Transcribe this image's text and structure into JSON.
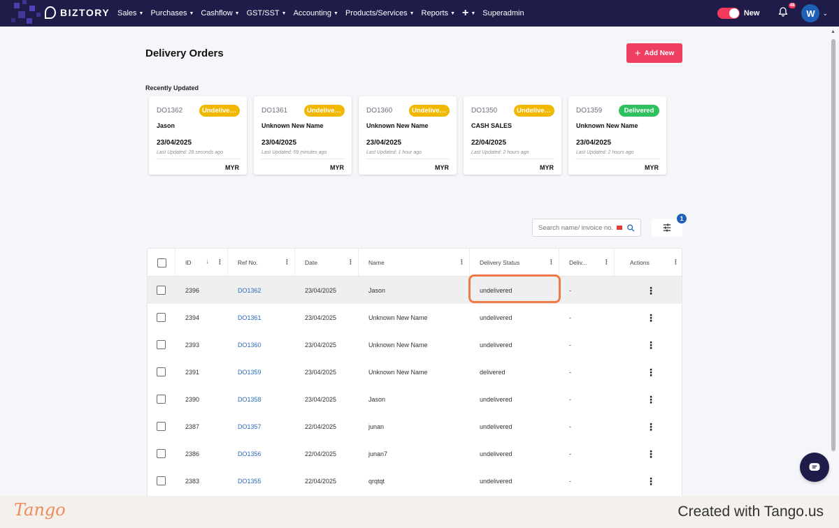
{
  "brand": {
    "name": "BIZTORY"
  },
  "nav": {
    "items": [
      "Sales",
      "Purchases",
      "Cashflow",
      "GST/SST",
      "Accounting",
      "Products/Services",
      "Reports"
    ],
    "plus": "+",
    "superadmin": "Superadmin"
  },
  "header_right": {
    "toggle_label": "New",
    "notification_count": "48",
    "avatar_initial": "W"
  },
  "page": {
    "title": "Delivery Orders",
    "add_button": "Add New",
    "recent_label": "Recently Updated"
  },
  "recent_cards": [
    {
      "ref": "DO1362",
      "status": "Undelivered",
      "status_type": "undel",
      "name": "Jason",
      "date": "23/04/2025",
      "updated": "Last Updated: 28 seconds ago",
      "currency": "MYR"
    },
    {
      "ref": "DO1361",
      "status": "Undelivered",
      "status_type": "undel",
      "name": "Unknown New Name",
      "date": "23/04/2025",
      "updated": "Last Updated: 59 minutes ago",
      "currency": "MYR"
    },
    {
      "ref": "DO1360",
      "status": "Undelivered",
      "status_type": "undel",
      "name": "Unknown New Name",
      "date": "23/04/2025",
      "updated": "Last Updated: 1 hour ago",
      "currency": "MYR"
    },
    {
      "ref": "DO1350",
      "status": "Undelivered",
      "status_type": "undel",
      "name": "CASH SALES",
      "date": "22/04/2025",
      "updated": "Last Updated: 2 hours ago",
      "currency": "MYR"
    },
    {
      "ref": "DO1359",
      "status": "Delivered",
      "status_type": "del",
      "name": "Unknown New Name",
      "date": "23/04/2025",
      "updated": "Last Updated: 2 hours ago",
      "currency": "MYR"
    }
  ],
  "search": {
    "placeholder": "Search name/ invoice no."
  },
  "filter": {
    "badge": "1"
  },
  "table": {
    "columns": [
      "ID",
      "Ref No.",
      "Date",
      "Name",
      "Delivery Status",
      "Deliv...",
      "Actions"
    ],
    "rows": [
      {
        "id": "2396",
        "ref": "DO1362",
        "date": "23/04/2025",
        "name": "Jason",
        "status": "undelivered",
        "deliv": "-"
      },
      {
        "id": "2394",
        "ref": "DO1361",
        "date": "23/04/2025",
        "name": "Unknown New Name",
        "status": "undelivered",
        "deliv": "-"
      },
      {
        "id": "2393",
        "ref": "DO1360",
        "date": "23/04/2025",
        "name": "Unknown New Name",
        "status": "undelivered",
        "deliv": "-"
      },
      {
        "id": "2391",
        "ref": "DO1359",
        "date": "23/04/2025",
        "name": "Unknown New Name",
        "status": "delivered",
        "deliv": "-"
      },
      {
        "id": "2390",
        "ref": "DO1358",
        "date": "23/04/2025",
        "name": "Jason",
        "status": "undelivered",
        "deliv": "-"
      },
      {
        "id": "2387",
        "ref": "DO1357",
        "date": "22/04/2025",
        "name": "junan",
        "status": "undelivered",
        "deliv": "-"
      },
      {
        "id": "2386",
        "ref": "DO1356",
        "date": "22/04/2025",
        "name": "junan7",
        "status": "undelivered",
        "deliv": "-"
      },
      {
        "id": "2383",
        "ref": "DO1355",
        "date": "22/04/2025",
        "name": "qrqtqt",
        "status": "undelivered",
        "deliv": "-"
      }
    ]
  },
  "footer": {
    "brand": "Tango",
    "created": "Created with Tango.us"
  }
}
